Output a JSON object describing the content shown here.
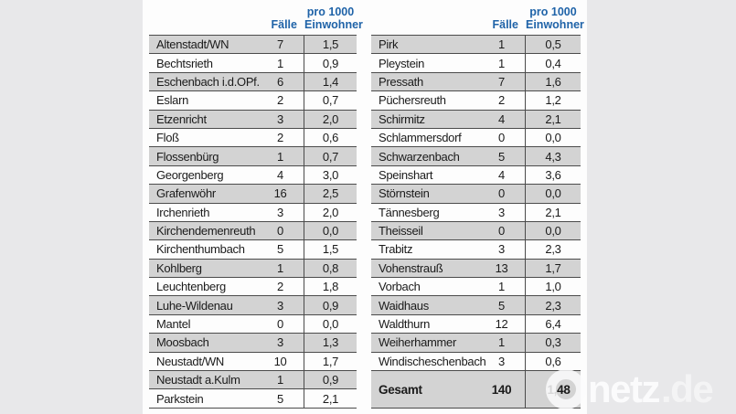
{
  "colors": {
    "page_background": "#e8e8ea",
    "panel_background": "#fdfdfd",
    "row_gray": "#d3d3d3",
    "line_dark": "#4b4b4b",
    "header_blue": "#1f63a8"
  },
  "chart_data": {
    "type": "table",
    "header": {
      "cases": "Fälle",
      "per_thousand_line1": "pro 1000",
      "per_thousand_line2": "Einwohner"
    },
    "tables": [
      {
        "rows": [
          {
            "name": "Altenstadt/WN",
            "cases": "7",
            "rate": "1,5"
          },
          {
            "name": "Bechtsrieth",
            "cases": "1",
            "rate": "0,9"
          },
          {
            "name": "Eschenbach i.d.OPf.",
            "cases": "6",
            "rate": "1,4"
          },
          {
            "name": "Eslarn",
            "cases": "2",
            "rate": "0,7"
          },
          {
            "name": "Etzenricht",
            "cases": "3",
            "rate": "2,0"
          },
          {
            "name": "Floß",
            "cases": "2",
            "rate": "0,6"
          },
          {
            "name": "Flossenbürg",
            "cases": "1",
            "rate": "0,7"
          },
          {
            "name": "Georgenberg",
            "cases": "4",
            "rate": "3,0"
          },
          {
            "name": "Grafenwöhr",
            "cases": "16",
            "rate": "2,5"
          },
          {
            "name": "Irchenrieth",
            "cases": "3",
            "rate": "2,0"
          },
          {
            "name": "Kirchendemenreuth",
            "cases": "0",
            "rate": "0,0"
          },
          {
            "name": "Kirchenthumbach",
            "cases": "5",
            "rate": "1,5"
          },
          {
            "name": "Kohlberg",
            "cases": "1",
            "rate": "0,8"
          },
          {
            "name": "Leuchtenberg",
            "cases": "2",
            "rate": "1,8"
          },
          {
            "name": "Luhe-Wildenau",
            "cases": "3",
            "rate": "0,9"
          },
          {
            "name": "Mantel",
            "cases": "0",
            "rate": "0,0"
          },
          {
            "name": "Moosbach",
            "cases": "3",
            "rate": "1,3"
          },
          {
            "name": "Neustadt/WN",
            "cases": "10",
            "rate": "1,7"
          },
          {
            "name": "Neustadt a.Kulm",
            "cases": "1",
            "rate": "0,9"
          },
          {
            "name": "Parkstein",
            "cases": "5",
            "rate": "2,1"
          }
        ]
      },
      {
        "rows": [
          {
            "name": "Pirk",
            "cases": "1",
            "rate": "0,5"
          },
          {
            "name": "Pleystein",
            "cases": "1",
            "rate": "0,4"
          },
          {
            "name": "Pressath",
            "cases": "7",
            "rate": "1,6"
          },
          {
            "name": "Püchersreuth",
            "cases": "2",
            "rate": "1,2"
          },
          {
            "name": "Schirmitz",
            "cases": "4",
            "rate": "2,1"
          },
          {
            "name": "Schlammersdorf",
            "cases": "0",
            "rate": "0,0"
          },
          {
            "name": "Schwarzenbach",
            "cases": "5",
            "rate": "4,3"
          },
          {
            "name": "Speinshart",
            "cases": "4",
            "rate": "3,6"
          },
          {
            "name": "Störnstein",
            "cases": "0",
            "rate": "0,0"
          },
          {
            "name": "Tännesberg",
            "cases": "3",
            "rate": "2,1"
          },
          {
            "name": "Theisseil",
            "cases": "0",
            "rate": "0,0"
          },
          {
            "name": "Trabitz",
            "cases": "3",
            "rate": "2,3"
          },
          {
            "name": "Vohenstrauß",
            "cases": "13",
            "rate": "1,7"
          },
          {
            "name": "Vorbach",
            "cases": "1",
            "rate": "1,0"
          },
          {
            "name": "Waidhaus",
            "cases": "5",
            "rate": "2,3"
          },
          {
            "name": "Waldthurn",
            "cases": "12",
            "rate": "6,4"
          },
          {
            "name": "Weiherhammer",
            "cases": "1",
            "rate": "0,3"
          },
          {
            "name": "Windischeschenbach",
            "cases": "3",
            "rate": "0,6"
          }
        ],
        "total": {
          "name": "Gesamt",
          "cases": "140",
          "rate": "1,48"
        }
      }
    ]
  },
  "watermark": {
    "name_part": "netz",
    "domain_part": ".de"
  }
}
